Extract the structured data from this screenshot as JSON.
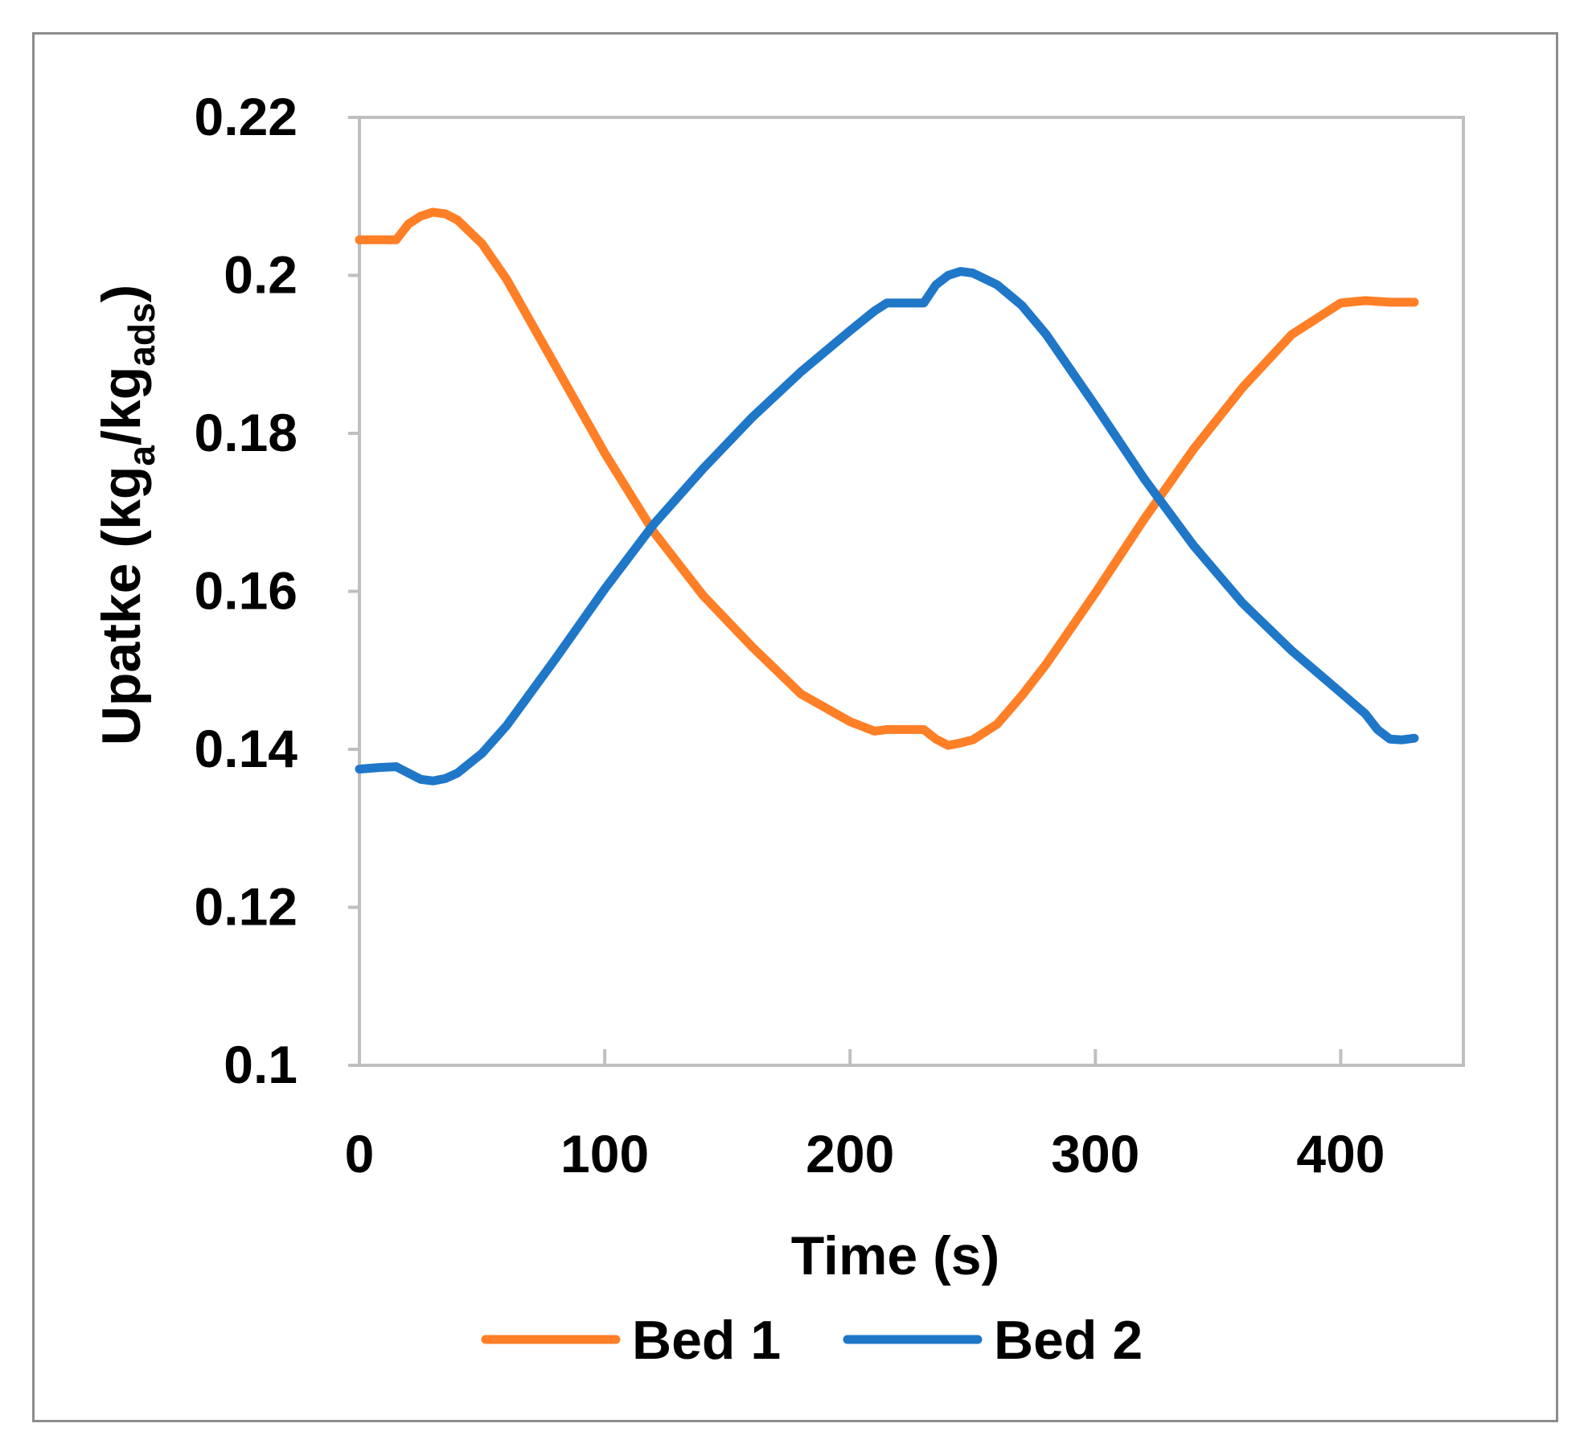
{
  "chart_data": {
    "type": "line",
    "xlabel": "Time (s)",
    "ylabel": {
      "main": "Upatke (kg",
      "sub1": "a",
      "mid": "/kg",
      "sub2": "ads",
      "end": ")"
    },
    "xlim": [
      0,
      450
    ],
    "ylim": [
      0.1,
      0.22
    ],
    "xticks": [
      {
        "value": 0,
        "label": "0"
      },
      {
        "value": 100,
        "label": "100"
      },
      {
        "value": 200,
        "label": "200"
      },
      {
        "value": 300,
        "label": "300"
      },
      {
        "value": 400,
        "label": "400"
      }
    ],
    "yticks": [
      {
        "value": 0.1,
        "label": "0.1"
      },
      {
        "value": 0.12,
        "label": "0.12"
      },
      {
        "value": 0.14,
        "label": "0.14"
      },
      {
        "value": 0.16,
        "label": "0.16"
      },
      {
        "value": 0.18,
        "label": "0.18"
      },
      {
        "value": 0.2,
        "label": "0.2"
      },
      {
        "value": 0.22,
        "label": "0.22"
      }
    ],
    "grid": false,
    "legend_position": "bottom",
    "series": [
      {
        "name": "Bed 1",
        "color": "#ff7f27",
        "x": [
          0,
          8,
          15,
          20,
          25,
          30,
          35,
          40,
          50,
          60,
          80,
          100,
          120,
          140,
          160,
          180,
          200,
          210,
          215,
          222,
          230,
          235,
          240,
          245,
          250,
          260,
          270,
          280,
          300,
          320,
          340,
          360,
          380,
          400,
          410,
          415,
          420,
          425,
          430
        ],
        "y": [
          0.2045,
          0.2045,
          0.2045,
          0.2065,
          0.2075,
          0.208,
          0.2078,
          0.207,
          0.204,
          0.1995,
          0.1885,
          0.1775,
          0.1675,
          0.1595,
          0.153,
          0.147,
          0.1435,
          0.1423,
          0.1425,
          0.1425,
          0.1425,
          0.1413,
          0.1405,
          0.1408,
          0.1412,
          0.1432,
          0.1468,
          0.1508,
          0.1598,
          0.1692,
          0.178,
          0.1858,
          0.1925,
          0.1965,
          0.1968,
          0.1967,
          0.1966,
          0.1966,
          0.1966
        ]
      },
      {
        "name": "Bed 2",
        "color": "#1f77c8",
        "x": [
          0,
          8,
          15,
          20,
          25,
          30,
          35,
          40,
          50,
          60,
          80,
          100,
          120,
          140,
          160,
          180,
          200,
          210,
          215,
          222,
          230,
          235,
          240,
          245,
          250,
          260,
          270,
          280,
          300,
          320,
          340,
          360,
          380,
          400,
          410,
          415,
          420,
          425,
          430
        ],
        "y": [
          0.1375,
          0.1377,
          0.1378,
          0.137,
          0.1362,
          0.136,
          0.1363,
          0.137,
          0.1395,
          0.143,
          0.1515,
          0.1603,
          0.1685,
          0.1755,
          0.182,
          0.1878,
          0.193,
          0.1955,
          0.1965,
          0.1965,
          0.1965,
          0.1988,
          0.2,
          0.2005,
          0.2003,
          0.1988,
          0.1962,
          0.1925,
          0.1835,
          0.1742,
          0.1658,
          0.1585,
          0.1525,
          0.1472,
          0.1445,
          0.1425,
          0.1413,
          0.1412,
          0.1414
        ]
      }
    ]
  }
}
